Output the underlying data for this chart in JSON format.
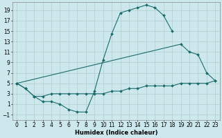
{
  "xlabel": "Humidex (Indice chaleur)",
  "bg_color": "#cce8ec",
  "line_color": "#1a6b6b",
  "grid_color": "#b0cccc",
  "xlim": [
    -0.5,
    23.5
  ],
  "ylim": [
    -2,
    20.5
  ],
  "xtick_labels": [
    "0",
    "1",
    "2",
    "3",
    "4",
    "5",
    "6",
    "7",
    "8",
    "9",
    "10",
    "11",
    "12",
    "13",
    "14",
    "15",
    "16",
    "17",
    "18",
    "19",
    "20",
    "21",
    "22",
    "23"
  ],
  "xtick_vals": [
    0,
    1,
    2,
    3,
    4,
    5,
    6,
    7,
    8,
    9,
    10,
    11,
    12,
    13,
    14,
    15,
    16,
    17,
    18,
    19,
    20,
    21,
    22,
    23
  ],
  "yticks": [
    -1,
    1,
    3,
    5,
    7,
    9,
    11,
    13,
    15,
    17,
    19
  ],
  "line1_x": [
    0,
    1,
    2,
    3,
    4,
    5,
    6,
    7,
    8,
    9,
    10,
    11,
    12,
    13,
    14,
    15,
    16,
    17,
    18
  ],
  "line1_y": [
    5,
    4,
    2.5,
    1.5,
    1.5,
    1.0,
    0.0,
    -0.5,
    -0.5,
    3.5,
    9.5,
    14.5,
    18.5,
    19.0,
    19.5,
    20.0,
    19.5,
    18.0,
    15.0
  ],
  "line2_x": [
    0,
    19,
    20,
    21,
    22,
    23
  ],
  "line2_y": [
    5,
    12.5,
    11.0,
    10.5,
    7.0,
    5.5
  ],
  "line3_x": [
    0,
    1,
    2,
    3,
    4,
    5,
    6,
    7,
    8,
    9,
    10,
    11,
    12,
    13,
    14,
    15,
    16,
    17,
    18,
    19,
    20,
    21,
    22,
    23
  ],
  "line3_y": [
    5,
    4,
    2.5,
    2.5,
    3.0,
    3.0,
    3.0,
    3.0,
    3.0,
    3.0,
    3.0,
    3.5,
    3.5,
    4.0,
    4.0,
    4.5,
    4.5,
    4.5,
    4.5,
    5.0,
    5.0,
    5.0,
    5.0,
    5.5
  ]
}
